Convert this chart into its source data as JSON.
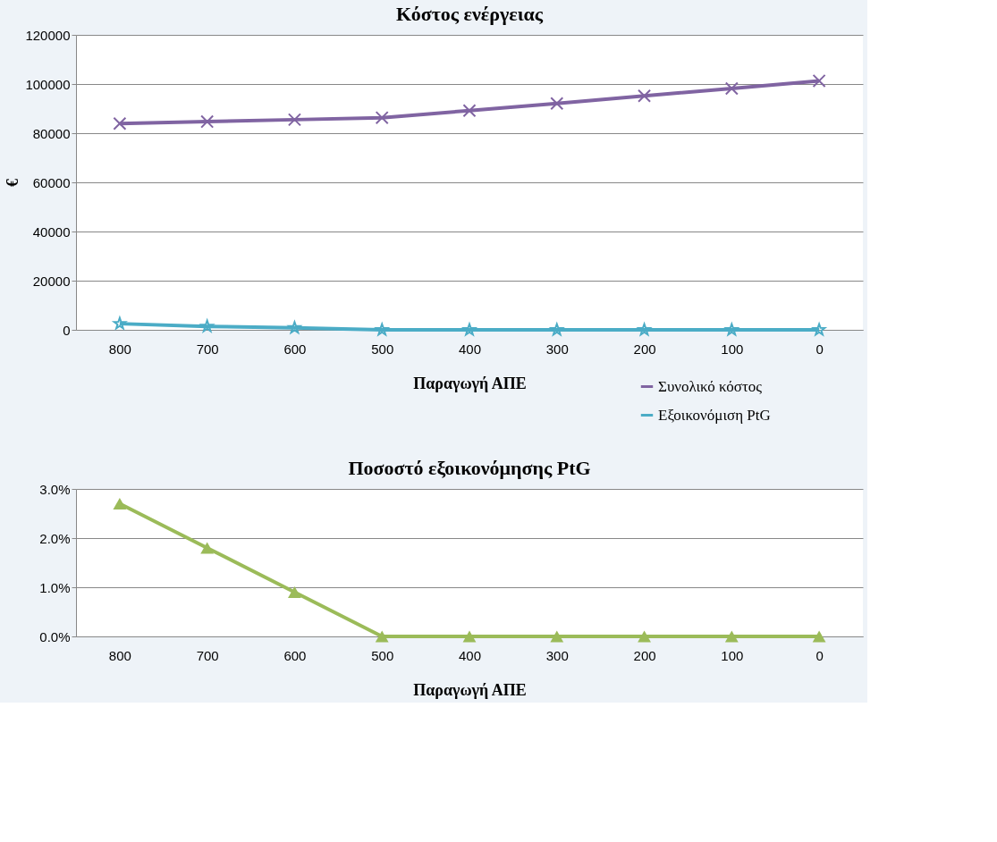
{
  "chart_data": [
    {
      "type": "line",
      "title": "Κόστος ενέργειας",
      "xlabel": "Παραγωγή ΑΠΕ",
      "ylabel": "€",
      "categories": [
        "800",
        "700",
        "600",
        "500",
        "400",
        "300",
        "200",
        "100",
        "0"
      ],
      "series": [
        {
          "name": "Συνολικό κόστος",
          "color": "#8064a2",
          "marker": "cross",
          "values": [
            83900,
            84700,
            85500,
            86300,
            89200,
            92100,
            95200,
            98200,
            101300
          ]
        },
        {
          "name": "Εξοικονόμιση PtG",
          "color": "#4bacc6",
          "marker": "star",
          "values": [
            2500,
            1400,
            800,
            0,
            0,
            0,
            0,
            0,
            0
          ]
        }
      ],
      "ylim": [
        0,
        120000
      ],
      "yticks": [
        0,
        20000,
        40000,
        60000,
        80000,
        100000,
        120000
      ],
      "grid": "y",
      "legend": "bottom right"
    },
    {
      "type": "line",
      "title": "Ποσοστό εξοικονόμησης PtG",
      "xlabel": "Παραγωγή ΑΠΕ",
      "categories": [
        "800",
        "700",
        "600",
        "500",
        "400",
        "300",
        "200",
        "100",
        "0"
      ],
      "series": [
        {
          "color": "#9bbb59",
          "marker": "triangle",
          "values": [
            2.7,
            1.8,
            0.9,
            0,
            0,
            0,
            0,
            0,
            0
          ]
        }
      ],
      "ylim": [
        0,
        3
      ],
      "yticks": [
        {
          "value": 0,
          "label": "0.0%"
        },
        {
          "value": 1,
          "label": "1.0%"
        },
        {
          "value": 2,
          "label": "2.0%"
        },
        {
          "value": 3,
          "label": "3.0%"
        }
      ],
      "grid": "y"
    }
  ]
}
